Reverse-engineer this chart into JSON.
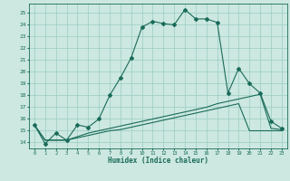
{
  "xlabel": "Humidex (Indice chaleur)",
  "bg_color": "#cce8e0",
  "grid_color": "#99ccc4",
  "line_color": "#1a6b5a",
  "x_ticks": [
    0,
    1,
    2,
    3,
    4,
    5,
    6,
    7,
    8,
    9,
    10,
    11,
    12,
    13,
    14,
    15,
    16,
    17,
    18,
    19,
    20,
    21,
    22,
    23
  ],
  "y_ticks": [
    14,
    15,
    16,
    17,
    18,
    19,
    20,
    21,
    22,
    23,
    24,
    25
  ],
  "xlim": [
    -0.5,
    23.5
  ],
  "ylim": [
    13.5,
    25.8
  ],
  "line1": [
    15.5,
    13.9,
    14.8,
    14.2,
    15.5,
    15.3,
    16.0,
    18.0,
    19.5,
    21.2,
    23.8,
    24.3,
    24.1,
    24.0,
    25.3,
    24.5,
    24.5,
    24.2,
    18.2,
    20.3,
    19.0,
    18.2,
    15.8,
    15.2
  ],
  "line2": [
    15.5,
    14.2,
    14.2,
    14.2,
    14.5,
    14.8,
    15.0,
    15.2,
    15.4,
    15.6,
    15.8,
    16.0,
    16.2,
    16.4,
    16.6,
    16.8,
    17.0,
    17.3,
    17.5,
    17.7,
    17.9,
    18.1,
    15.2,
    15.1
  ],
  "line3": [
    15.5,
    14.2,
    14.2,
    14.2,
    14.4,
    14.6,
    14.8,
    15.0,
    15.1,
    15.3,
    15.5,
    15.7,
    15.9,
    16.1,
    16.3,
    16.5,
    16.7,
    16.9,
    17.1,
    17.3,
    15.0,
    15.0,
    15.0,
    15.0
  ]
}
